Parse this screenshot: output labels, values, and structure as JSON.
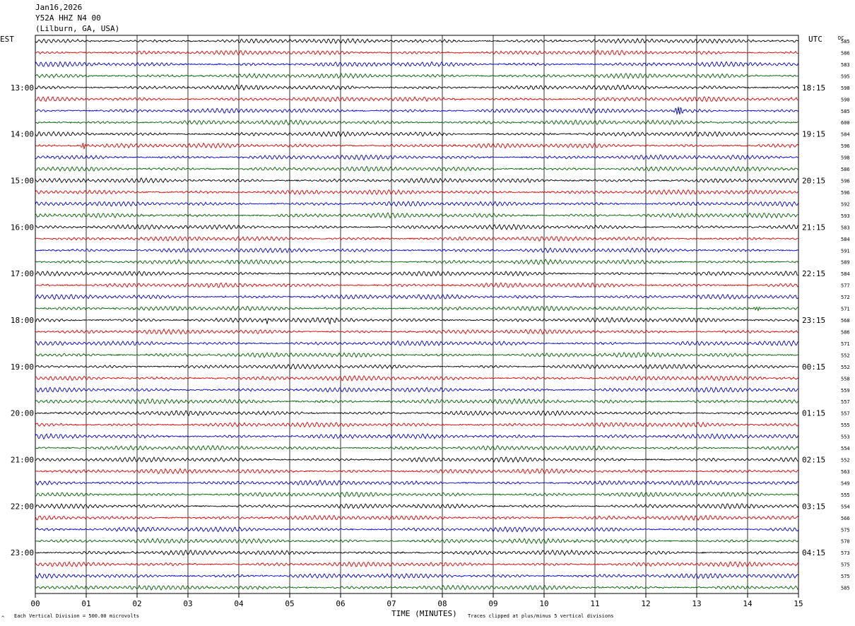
{
  "header": {
    "date": "Jan16,2026",
    "station": "Y52A HHZ N4 00",
    "location": "(Lilburn, GA, USA)"
  },
  "left_tz": "EST",
  "right_tz": "UTC",
  "dc_label": "DC",
  "footer": {
    "scale_note": "Each Vertical Division =  500.00 microvolts",
    "clip_note": "Traces clipped at plus/minus 5 vertical divisions",
    "corner_mark": "^"
  },
  "colors": {
    "cycle": [
      "#000000",
      "#e00000",
      "#0000d0",
      "#006000"
    ],
    "grid": "#000000",
    "background": "#ffffff"
  },
  "chart_data": {
    "type": "line",
    "xlabel": "TIME (MINUTES)",
    "xlim": [
      0,
      15
    ],
    "x_ticks": [
      "00",
      "01",
      "02",
      "03",
      "04",
      "05",
      "06",
      "07",
      "08",
      "09",
      "10",
      "11",
      "12",
      "13",
      "14",
      "15"
    ],
    "left_hour_labels": [
      "13:00",
      "14:00",
      "15:00",
      "16:00",
      "17:00",
      "18:00",
      "19:00",
      "20:00",
      "21:00",
      "22:00",
      "23:00"
    ],
    "right_hour_labels": [
      "18:15",
      "19:15",
      "20:15",
      "21:15",
      "22:15",
      "23:15",
      "00:15",
      "01:15",
      "02:15",
      "03:15",
      "04:15"
    ],
    "rows_per_hour": 4,
    "first_labeled_row": 4,
    "dc_offsets": [
      585,
      586,
      583,
      595,
      598,
      590,
      585,
      600,
      584,
      596,
      598,
      586,
      596,
      596,
      592,
      593,
      583,
      584,
      591,
      589,
      584,
      577,
      572,
      571,
      568,
      586,
      571,
      552,
      552,
      558,
      559,
      557,
      557,
      555,
      553,
      554,
      552,
      563,
      549,
      555,
      554,
      566,
      575,
      570,
      573,
      575,
      575,
      585
    ],
    "events": [
      {
        "row": 6,
        "minute": 12.65,
        "amplitude": 3.0
      },
      {
        "row": 9,
        "minute": 0.95,
        "amplitude": 1.6
      },
      {
        "row": 23,
        "minute": 14.2,
        "amplitude": 1.3
      },
      {
        "row": 24,
        "minute": 4.55,
        "amplitude": 1.3
      },
      {
        "row": 24,
        "minute": 5.8,
        "amplitude": 1.2
      }
    ]
  }
}
